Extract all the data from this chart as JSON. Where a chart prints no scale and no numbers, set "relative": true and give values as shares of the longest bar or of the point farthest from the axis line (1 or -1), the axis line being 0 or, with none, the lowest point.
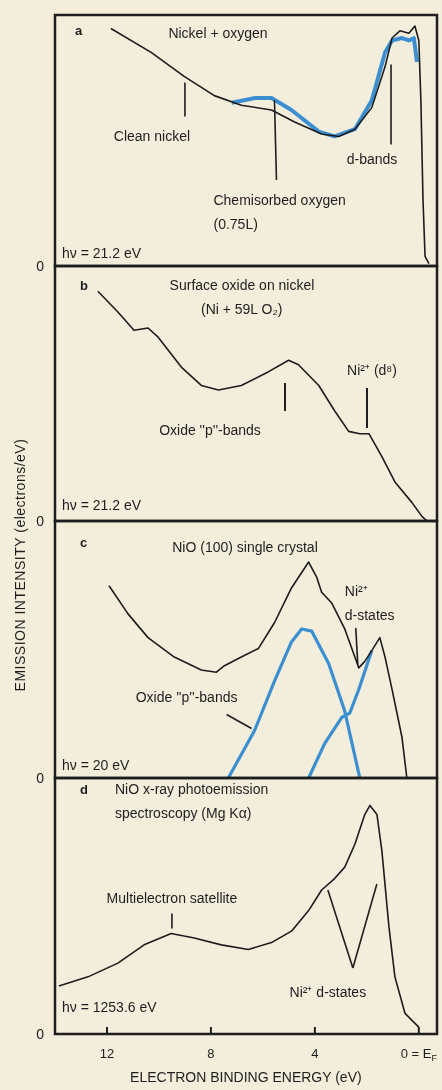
{
  "chart_data": [
    {
      "type": "line",
      "title": "a",
      "subtitle": "Nickel + oxygen",
      "relative": true,
      "xlim": [
        14,
        -0.7
      ],
      "marker": "none",
      "series": [
        {
          "color": "#1c1c1c",
          "x": [
            11.85,
            10.3,
            9.03,
            7.87,
            6.83,
            5.67,
            4.78,
            3.74,
            3.08,
            2.46,
            1.81,
            1.3,
            1.03,
            0.73,
            0.38,
            0.15,
            0.0,
            -0.08,
            -0.16,
            -0.24,
            -0.39
          ],
          "values": [
            0.99,
            0.89,
            0.79,
            0.71,
            0.67,
            0.65,
            0.6,
            0.55,
            0.54,
            0.57,
            0.66,
            0.83,
            0.95,
            0.98,
            0.97,
            1.0,
            0.94,
            0.69,
            0.28,
            0.04,
            0.01
          ]
        },
        {
          "color": "#3b8fd1",
          "x": [
            7.2,
            6.3,
            5.67,
            4.9,
            3.85,
            3.24,
            2.46,
            1.81,
            1.3,
            1.03,
            0.65,
            0.38,
            0.19,
            0.07
          ],
          "values": [
            0.68,
            0.7,
            0.7,
            0.65,
            0.56,
            0.54,
            0.57,
            0.69,
            0.89,
            0.94,
            0.95,
            0.94,
            0.95,
            0.85
          ]
        }
      ],
      "annotations": [
        {
          "text": "Clean nickel",
          "x": 9.0,
          "y": 0.79
        },
        {
          "text": "Chemisorbed oxygen (0.75L)",
          "x": 5.67,
          "y": 0.7
        },
        {
          "text": "d-bands",
          "x": 1.3,
          "y": 0.84
        },
        "hν = 21.2 eV",
        "0"
      ]
    },
    {
      "type": "line",
      "title": "b",
      "subtitle": "Surface oxide on nickel (Ni + 59L O₂)",
      "ylabel": "EMISSION INTENSITY (electrons/eV)",
      "relative": true,
      "xlim": [
        14,
        -0.7
      ],
      "marker": "none",
      "series": [
        {
          "color": "#1c1c1c",
          "x": [
            12.35,
            11.58,
            10.96,
            10.42,
            10.03,
            9.14,
            8.37,
            7.71,
            6.83,
            5.78,
            5.01,
            4.63,
            3.85,
            3.24,
            2.7,
            2.27,
            1.92,
            1.42,
            0.92,
            0.26,
            -0.12,
            -0.32
          ],
          "values": [
            1.0,
            0.91,
            0.83,
            0.84,
            0.8,
            0.67,
            0.59,
            0.57,
            0.59,
            0.65,
            0.7,
            0.68,
            0.59,
            0.48,
            0.39,
            0.38,
            0.38,
            0.28,
            0.17,
            0.08,
            0.02,
            0
          ]
        }
      ],
      "annotations": [
        "Oxide ''p''-bands",
        "Ni²⁺ (d⁸)",
        "hν = 21.2 eV",
        "0"
      ]
    },
    {
      "type": "line",
      "title": "c",
      "subtitle": "NiO (100) single crystal",
      "relative": true,
      "xlim": [
        14,
        -0.7
      ],
      "marker": "none",
      "series": [
        {
          "color": "#1c1c1c",
          "x": [
            11.92,
            11.19,
            10.42,
            9.41,
            8.37,
            7.79,
            7.48,
            6.83,
            6.17,
            5.55,
            4.9,
            4.24,
            3.93,
            3.74,
            3.35,
            2.85,
            2.46,
            2.31,
            2.08,
            1.81,
            1.5,
            1.3,
            1.03,
            0.65,
            0.46
          ],
          "values": [
            0.89,
            0.76,
            0.65,
            0.56,
            0.5,
            0.49,
            0.52,
            0.56,
            0.6,
            0.72,
            0.88,
            1.0,
            0.93,
            0.86,
            0.81,
            0.69,
            0.56,
            0.51,
            0.54,
            0.59,
            0.65,
            0.56,
            0.41,
            0.19,
            0
          ]
        },
        {
          "color": "#3b8fd1",
          "x": [
            7.33,
            6.32,
            5.55,
            4.9,
            4.51,
            4.12,
            3.47,
            2.85,
            2.27
          ],
          "values": [
            0,
            0.22,
            0.45,
            0.63,
            0.69,
            0.68,
            0.53,
            0.31,
            0
          ]
        },
        {
          "color": "#3b8fd1",
          "x": [
            4.24,
            3.62,
            2.97,
            2.66,
            2.31,
            1.81
          ],
          "values": [
            0,
            0.16,
            0.28,
            0.3,
            0.41,
            0.59
          ]
        }
      ],
      "annotations": [
        {
          "text": "Ni²⁺ d-states",
          "x": 2.31,
          "y": 0.51
        },
        {
          "text": "Oxide ''p''-bands",
          "x": 6.32,
          "y": 0.22
        },
        "hν = 20 eV",
        "0"
      ]
    },
    {
      "type": "line",
      "title": "d",
      "subtitle": "NiO x-ray photoemission spectroscopy (Mg Kα)",
      "xlabel": "ELECTRON BINDING ENERGY (eV)",
      "relative": true,
      "xlim": [
        14,
        -0.7
      ],
      "xticks": [
        12,
        8,
        4,
        {
          "value": 0,
          "label": "0 = E$_{F}$"
        }
      ],
      "marker": "none",
      "series": [
        {
          "color": "#1c1c1c",
          "x": [
            13.85,
            12.73,
            11.58,
            10.57,
            9.53,
            8.64,
            7.6,
            6.56,
            5.67,
            4.9,
            4.24,
            3.74,
            3.24,
            2.85,
            2.46,
            2.08,
            1.88,
            1.61,
            1.42,
            1.15,
            0.92,
            0.53,
            0.0
          ],
          "values": [
            0.21,
            0.25,
            0.31,
            0.39,
            0.44,
            0.42,
            0.39,
            0.37,
            0.4,
            0.45,
            0.54,
            0.63,
            0.68,
            0.73,
            0.83,
            0.96,
            1.0,
            0.96,
            0.8,
            0.47,
            0.25,
            0.09,
            0.03
          ]
        }
      ],
      "annotations": [
        {
          "text": "Multielectron satellite",
          "x": 9.5,
          "y": 0.44
        },
        {
          "text": "Ni²⁺ d-states",
          "x": 3.5,
          "y": 0.63
        },
        "hν = 1253.6 eV",
        "0"
      ]
    }
  ]
}
